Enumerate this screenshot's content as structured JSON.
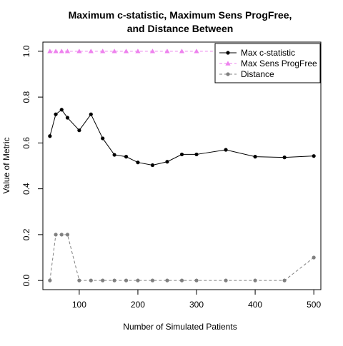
{
  "chart_data": {
    "type": "line",
    "title": [
      "Maximum c-statistic, Maximum Sens ProgFree,",
      "and Distance Between"
    ],
    "xlabel": "Number of Simulated Patients",
    "ylabel": "Value of Metric",
    "xlim": [
      38,
      512
    ],
    "ylim": [
      -0.04,
      1.04
    ],
    "xticks": [
      100,
      200,
      300,
      400,
      500
    ],
    "yticks": [
      0.0,
      0.2,
      0.4,
      0.6,
      0.8,
      1.0
    ],
    "ytick_labels": [
      "0.0",
      "0.2",
      "0.4",
      "0.6",
      "0.8",
      "1.0"
    ],
    "legend_position": "top-right",
    "series": [
      {
        "name": "Max c-statistic",
        "color": "#000000",
        "line": "solid",
        "marker": "circle",
        "x": [
          50,
          60,
          70,
          80,
          100,
          120,
          140,
          160,
          180,
          200,
          225,
          250,
          275,
          300,
          350,
          400,
          450,
          500
        ],
        "y": [
          0.63,
          0.725,
          0.745,
          0.71,
          0.655,
          0.725,
          0.62,
          0.548,
          0.54,
          0.515,
          0.503,
          0.518,
          0.55,
          0.55,
          0.57,
          0.54,
          0.537,
          0.543
        ]
      },
      {
        "name": "Max Sens ProgFree",
        "color": "#ee82ee",
        "line": "dashed",
        "marker": "triangle",
        "x": [
          50,
          60,
          70,
          80,
          100,
          120,
          140,
          160,
          180,
          200,
          225,
          250,
          275,
          300,
          350,
          400,
          450,
          500
        ],
        "y": [
          1,
          1,
          1,
          1,
          1,
          1,
          1,
          1,
          1,
          1,
          1,
          1,
          1,
          1,
          1,
          1,
          1,
          1
        ]
      },
      {
        "name": "Distance",
        "color": "#808080",
        "line": "dashed",
        "marker": "circle",
        "x": [
          50,
          60,
          70,
          80,
          100,
          120,
          140,
          160,
          180,
          200,
          225,
          250,
          275,
          300,
          350,
          400,
          450,
          500
        ],
        "y": [
          0,
          0.2,
          0.2,
          0.2,
          0,
          0,
          0,
          0,
          0,
          0,
          0,
          0,
          0,
          0,
          0,
          0,
          0,
          0.1
        ]
      }
    ]
  }
}
